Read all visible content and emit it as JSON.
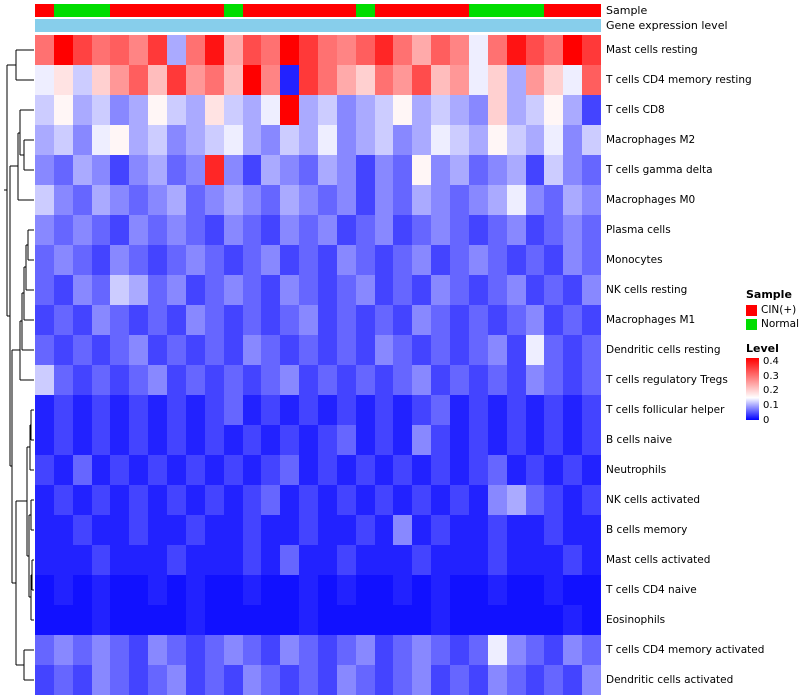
{
  "annotations": {
    "sample_label": "Sample",
    "gene_label": "Gene expression level"
  },
  "legend": {
    "sample": {
      "title": "Sample",
      "items": [
        {
          "label": "CIN(+)",
          "color": "#FF0000"
        },
        {
          "label": "Normal",
          "color": "#00DD00"
        }
      ]
    },
    "level": {
      "title": "Level",
      "ticks": [
        "0.4",
        "0.3",
        "0.2",
        "0.1",
        "0"
      ]
    }
  },
  "colors": {
    "high": "#FF0000",
    "mid": "#FFFFFF",
    "low": "#0000FF",
    "annotation_gene": "#87CEEB"
  },
  "chart_data": {
    "type": "heatmap",
    "legend_position": "right",
    "n_cols": 30,
    "rows": [
      "Mast cells resting",
      "T cells CD4 memory resting",
      "T cells CD8",
      "Macrophages M2",
      "T cells gamma delta",
      "Macrophages M0",
      "Plasma cells",
      "Monocytes",
      "NK cells resting",
      "Macrophages M1",
      "Dendritic cells resting",
      "T cells regulatory Tregs",
      "T cells follicular helper",
      "B cells naive",
      "Neutrophils",
      "NK cells activated",
      "B cells memory",
      "Mast cells activated",
      "T cells CD4 naive",
      "Eosinophils",
      "T cells CD4 memory activated",
      "Dendritic cells activated"
    ],
    "sample_annotation": [
      "CIN(+)",
      "Normal",
      "Normal",
      "Normal",
      "CIN(+)",
      "CIN(+)",
      "CIN(+)",
      "CIN(+)",
      "CIN(+)",
      "CIN(+)",
      "Normal",
      "CIN(+)",
      "CIN(+)",
      "CIN(+)",
      "CIN(+)",
      "CIN(+)",
      "CIN(+)",
      "Normal",
      "CIN(+)",
      "CIN(+)",
      "CIN(+)",
      "CIN(+)",
      "CIN(+)",
      "Normal",
      "Normal",
      "Normal",
      "Normal",
      "CIN(+)",
      "CIN(+)",
      "CIN(+)"
    ],
    "scale": {
      "min": 0,
      "white": 0.15,
      "max": 0.42
    },
    "values": [
      [
        0.3,
        0.42,
        0.35,
        0.3,
        0.32,
        0.28,
        0.36,
        0.1,
        0.3,
        0.4,
        0.24,
        0.34,
        0.3,
        0.42,
        0.36,
        0.3,
        0.28,
        0.32,
        0.38,
        0.3,
        0.24,
        0.32,
        0.28,
        0.14,
        0.3,
        0.4,
        0.34,
        0.3,
        0.42,
        0.36
      ],
      [
        0.14,
        0.18,
        0.12,
        0.2,
        0.26,
        0.32,
        0.22,
        0.36,
        0.26,
        0.3,
        0.22,
        0.42,
        0.28,
        0.02,
        0.36,
        0.3,
        0.24,
        0.2,
        0.3,
        0.26,
        0.34,
        0.22,
        0.26,
        0.14,
        0.2,
        0.1,
        0.26,
        0.2,
        0.14,
        0.32
      ],
      [
        0.12,
        0.16,
        0.1,
        0.12,
        0.08,
        0.1,
        0.16,
        0.12,
        0.1,
        0.18,
        0.12,
        0.1,
        0.14,
        0.42,
        0.1,
        0.12,
        0.08,
        0.1,
        0.12,
        0.16,
        0.1,
        0.12,
        0.1,
        0.08,
        0.2,
        0.1,
        0.12,
        0.16,
        0.1,
        0.04
      ],
      [
        0.1,
        0.12,
        0.08,
        0.14,
        0.16,
        0.1,
        0.12,
        0.08,
        0.1,
        0.12,
        0.14,
        0.1,
        0.08,
        0.12,
        0.1,
        0.14,
        0.08,
        0.1,
        0.12,
        0.08,
        0.1,
        0.14,
        0.12,
        0.1,
        0.16,
        0.12,
        0.1,
        0.14,
        0.08,
        0.12
      ],
      [
        0.08,
        0.06,
        0.1,
        0.08,
        0.04,
        0.08,
        0.1,
        0.06,
        0.08,
        0.38,
        0.08,
        0.04,
        0.1,
        0.08,
        0.06,
        0.1,
        0.08,
        0.04,
        0.08,
        0.06,
        0.16,
        0.08,
        0.1,
        0.06,
        0.08,
        0.1,
        0.04,
        0.12,
        0.08,
        0.06
      ],
      [
        0.12,
        0.08,
        0.06,
        0.1,
        0.08,
        0.06,
        0.08,
        0.1,
        0.06,
        0.08,
        0.1,
        0.08,
        0.06,
        0.1,
        0.08,
        0.06,
        0.08,
        0.04,
        0.08,
        0.06,
        0.1,
        0.08,
        0.06,
        0.08,
        0.1,
        0.14,
        0.08,
        0.06,
        0.1,
        0.08
      ],
      [
        0.08,
        0.06,
        0.08,
        0.06,
        0.04,
        0.08,
        0.06,
        0.08,
        0.06,
        0.04,
        0.08,
        0.06,
        0.04,
        0.08,
        0.06,
        0.08,
        0.04,
        0.06,
        0.08,
        0.04,
        0.06,
        0.08,
        0.06,
        0.04,
        0.06,
        0.08,
        0.04,
        0.06,
        0.08,
        0.06
      ],
      [
        0.06,
        0.08,
        0.06,
        0.04,
        0.08,
        0.06,
        0.04,
        0.06,
        0.08,
        0.06,
        0.04,
        0.06,
        0.08,
        0.04,
        0.06,
        0.04,
        0.08,
        0.06,
        0.04,
        0.06,
        0.08,
        0.04,
        0.06,
        0.08,
        0.06,
        0.04,
        0.06,
        0.04,
        0.08,
        0.06
      ],
      [
        0.06,
        0.04,
        0.08,
        0.06,
        0.12,
        0.1,
        0.06,
        0.08,
        0.04,
        0.06,
        0.08,
        0.06,
        0.04,
        0.08,
        0.06,
        0.04,
        0.06,
        0.08,
        0.04,
        0.06,
        0.04,
        0.08,
        0.06,
        0.04,
        0.06,
        0.08,
        0.04,
        0.06,
        0.04,
        0.08
      ],
      [
        0.04,
        0.06,
        0.04,
        0.08,
        0.06,
        0.04,
        0.06,
        0.04,
        0.08,
        0.06,
        0.04,
        0.06,
        0.04,
        0.06,
        0.08,
        0.04,
        0.06,
        0.04,
        0.06,
        0.04,
        0.08,
        0.06,
        0.04,
        0.06,
        0.04,
        0.06,
        0.08,
        0.04,
        0.06,
        0.04
      ],
      [
        0.06,
        0.04,
        0.06,
        0.04,
        0.06,
        0.08,
        0.04,
        0.06,
        0.04,
        0.06,
        0.04,
        0.08,
        0.06,
        0.04,
        0.06,
        0.04,
        0.06,
        0.04,
        0.08,
        0.06,
        0.04,
        0.06,
        0.04,
        0.06,
        0.08,
        0.04,
        0.14,
        0.06,
        0.04,
        0.06
      ],
      [
        0.12,
        0.06,
        0.04,
        0.06,
        0.04,
        0.06,
        0.08,
        0.04,
        0.06,
        0.04,
        0.06,
        0.04,
        0.06,
        0.08,
        0.04,
        0.06,
        0.04,
        0.06,
        0.04,
        0.06,
        0.08,
        0.04,
        0.06,
        0.04,
        0.06,
        0.04,
        0.08,
        0.06,
        0.04,
        0.06
      ],
      [
        0.02,
        0.04,
        0.02,
        0.04,
        0.02,
        0.04,
        0.02,
        0.04,
        0.02,
        0.04,
        0.06,
        0.02,
        0.04,
        0.02,
        0.04,
        0.02,
        0.04,
        0.02,
        0.04,
        0.02,
        0.04,
        0.06,
        0.02,
        0.04,
        0.02,
        0.04,
        0.02,
        0.04,
        0.02,
        0.04
      ],
      [
        0.02,
        0.04,
        0.02,
        0.04,
        0.02,
        0.04,
        0.02,
        0.04,
        0.02,
        0.04,
        0.02,
        0.04,
        0.02,
        0.04,
        0.02,
        0.04,
        0.06,
        0.02,
        0.04,
        0.02,
        0.08,
        0.04,
        0.02,
        0.04,
        0.02,
        0.04,
        0.02,
        0.04,
        0.02,
        0.04
      ],
      [
        0.04,
        0.02,
        0.06,
        0.02,
        0.04,
        0.02,
        0.04,
        0.02,
        0.04,
        0.02,
        0.04,
        0.02,
        0.04,
        0.06,
        0.02,
        0.04,
        0.02,
        0.04,
        0.02,
        0.04,
        0.02,
        0.04,
        0.02,
        0.04,
        0.06,
        0.02,
        0.04,
        0.02,
        0.04,
        0.02
      ],
      [
        0.02,
        0.04,
        0.02,
        0.04,
        0.02,
        0.04,
        0.02,
        0.04,
        0.02,
        0.04,
        0.02,
        0.04,
        0.06,
        0.02,
        0.04,
        0.02,
        0.04,
        0.02,
        0.04,
        0.02,
        0.04,
        0.02,
        0.04,
        0.02,
        0.08,
        0.1,
        0.06,
        0.04,
        0.02,
        0.04
      ],
      [
        0.02,
        0.02,
        0.04,
        0.02,
        0.02,
        0.04,
        0.02,
        0.02,
        0.04,
        0.02,
        0.02,
        0.04,
        0.02,
        0.02,
        0.04,
        0.02,
        0.02,
        0.04,
        0.02,
        0.08,
        0.02,
        0.04,
        0.02,
        0.02,
        0.04,
        0.02,
        0.02,
        0.04,
        0.02,
        0.02
      ],
      [
        0.02,
        0.02,
        0.02,
        0.04,
        0.02,
        0.02,
        0.02,
        0.04,
        0.02,
        0.02,
        0.02,
        0.04,
        0.02,
        0.06,
        0.02,
        0.02,
        0.04,
        0.02,
        0.02,
        0.02,
        0.04,
        0.02,
        0.02,
        0.02,
        0.04,
        0.02,
        0.02,
        0.02,
        0.04,
        0.02
      ],
      [
        0.01,
        0.02,
        0.01,
        0.02,
        0.01,
        0.01,
        0.02,
        0.01,
        0.02,
        0.01,
        0.01,
        0.02,
        0.01,
        0.01,
        0.02,
        0.01,
        0.02,
        0.01,
        0.01,
        0.02,
        0.01,
        0.02,
        0.01,
        0.01,
        0.02,
        0.01,
        0.01,
        0.02,
        0.01,
        0.01
      ],
      [
        0.01,
        0.01,
        0.01,
        0.02,
        0.01,
        0.01,
        0.01,
        0.01,
        0.02,
        0.01,
        0.01,
        0.01,
        0.01,
        0.01,
        0.02,
        0.01,
        0.01,
        0.01,
        0.01,
        0.01,
        0.01,
        0.02,
        0.01,
        0.01,
        0.01,
        0.01,
        0.01,
        0.01,
        0.02,
        0.01
      ],
      [
        0.06,
        0.08,
        0.06,
        0.08,
        0.06,
        0.04,
        0.08,
        0.06,
        0.04,
        0.06,
        0.08,
        0.06,
        0.04,
        0.08,
        0.06,
        0.04,
        0.06,
        0.08,
        0.04,
        0.06,
        0.08,
        0.06,
        0.04,
        0.06,
        0.14,
        0.08,
        0.06,
        0.04,
        0.08,
        0.06
      ],
      [
        0.04,
        0.06,
        0.04,
        0.08,
        0.06,
        0.04,
        0.06,
        0.08,
        0.04,
        0.06,
        0.04,
        0.08,
        0.06,
        0.04,
        0.06,
        0.04,
        0.08,
        0.06,
        0.04,
        0.06,
        0.08,
        0.04,
        0.06,
        0.04,
        0.08,
        0.06,
        0.04,
        0.06,
        0.04,
        0.08
      ]
    ]
  }
}
